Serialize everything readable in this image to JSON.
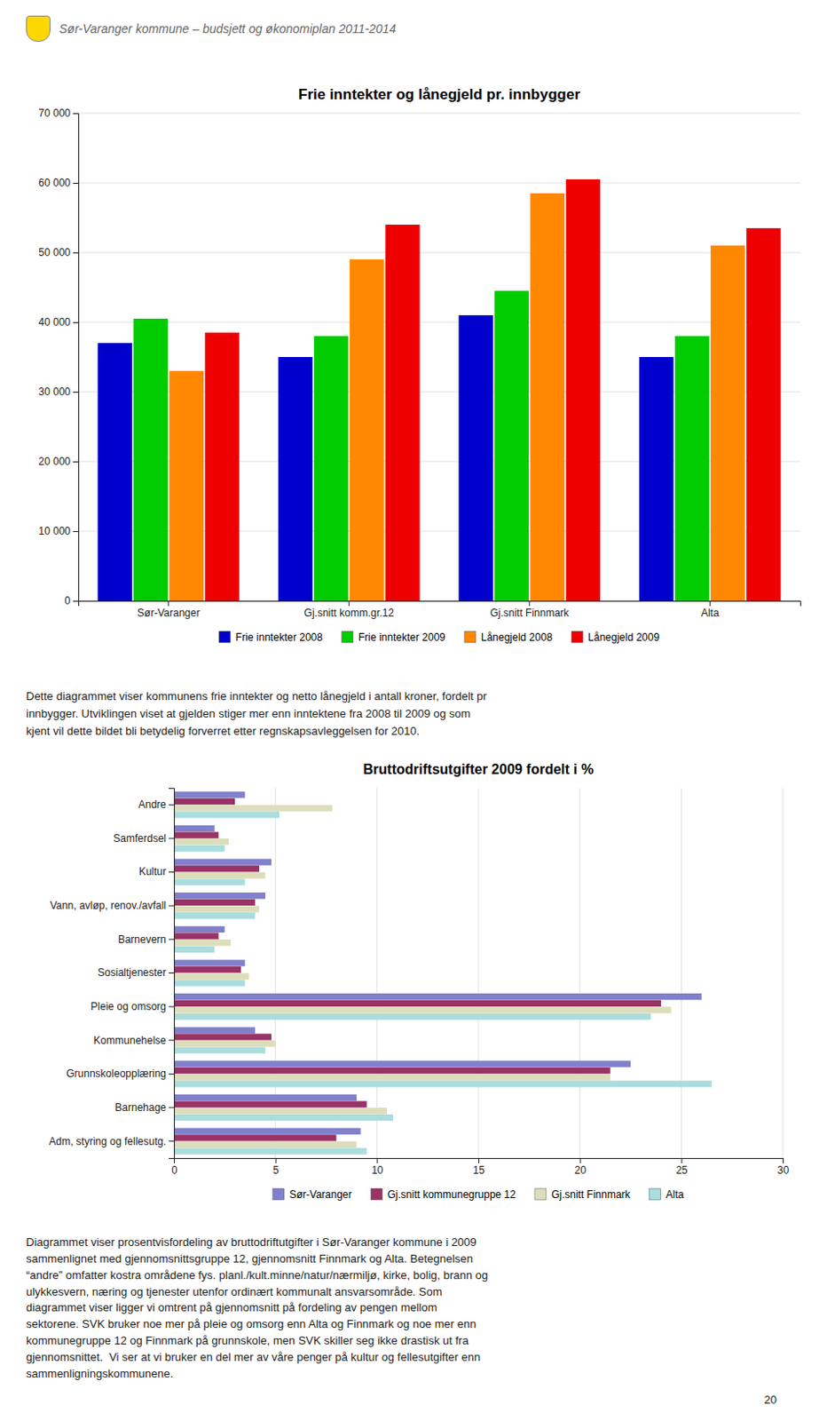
{
  "header_text": "Sør-Varanger kommune – budsjett og økonomiplan 2011-2014",
  "text1": "Dette diagrammet viser kommunens frie inntekter og netto lånegjeld i antall kroner, fordelt pr\ninnbygger. Utviklingen viset at gjelden stiger mer enn inntektene fra 2008 til 2009 og som\nkjent vil dette bildet bli betydelig forverret etter regnskapsavleggelsen for 2010.",
  "text2": "Diagrammet viser prosentvisfordeling av bruttodriftutgifter i Sør-Varanger kommune i 2009\nsammenlignet med gjennomsnittsgruppe 12, gjennomsnitt Finnmark og Alta. Betegnelsen\n“andre” omfatter kostra områdene fys. planl./kult.minne/natur/nærmiljø, kirke, bolig, brann og\nulykkesvern, næring og tjenester utenfor ordinært kommunalt ansvarsområde. Som\ndiagrammet viser ligger vi omtrent på gjennomsnitt på fordeling av pengen mellom\nsektorene. SVK bruker noe mer på pleie og omsorg enn Alta og Finnmark og noe mer enn\nkommunegruppe 12 og Finnmark på grunnskole, men SVK skiller seg ikke drastisk ut fra\ngjennomsnittet.  Vi ser at vi bruker en del mer av våre penger på kultur og fellesutgifter enn\nsammenligningskommunene.",
  "page_number": "20",
  "chart_data": [
    {
      "type": "bar",
      "title": "Frie inntekter og lånegjeld pr. innbygger",
      "categories": [
        "Sør-Varanger",
        "Gj.snitt komm.gr.12",
        "Gj.snitt Finnmark",
        "Alta"
      ],
      "series": [
        {
          "name": "Frie inntekter 2008",
          "color": "#0000CC",
          "values": [
            37000,
            35000,
            41000,
            35000
          ]
        },
        {
          "name": "Frie inntekter 2009",
          "color": "#00CC00",
          "values": [
            40500,
            38000,
            44500,
            38000
          ]
        },
        {
          "name": "Lånegjeld 2008",
          "color": "#FF8800",
          "values": [
            33000,
            49000,
            58500,
            51000
          ]
        },
        {
          "name": "Lånegjeld 2009",
          "color": "#EE0000",
          "values": [
            38500,
            54000,
            60500,
            53500
          ]
        }
      ],
      "ylim": [
        0,
        70000
      ],
      "yticks": [
        0,
        {
          "value": 10000,
          "label": "10 000"
        },
        {
          "value": 20000,
          "label": "20 000"
        },
        {
          "value": 30000,
          "label": "30 000"
        },
        {
          "value": 40000,
          "label": "40 000"
        },
        {
          "value": 50000,
          "label": "50 000"
        },
        {
          "value": 60000,
          "label": "60 000"
        },
        {
          "value": 70000,
          "label": "70 000"
        }
      ],
      "grid": true,
      "legend": "bottom"
    },
    {
      "type": "bar",
      "orientation": "horizontal",
      "title": "Bruttodriftsutgifter 2009 fordelt i %",
      "categories": [
        "Andre",
        "Samferdsel",
        "Kultur",
        "Vann, avløp, renov./avfall",
        "Barnevern",
        "Sosialtjenester",
        "Pleie og omsorg",
        "Kommunehelse",
        "Grunnskoleopplæring",
        "Barnehage",
        "Adm, styring og fellesutg."
      ],
      "series": [
        {
          "name": "Sør-Varanger",
          "color": "#8080CC",
          "values": [
            3.5,
            2.0,
            4.8,
            4.5,
            2.5,
            3.5,
            26.0,
            4.0,
            22.5,
            9.0,
            9.2
          ]
        },
        {
          "name": "Gj.snitt kommunegruppe 12",
          "color": "#993366",
          "values": [
            3.0,
            2.2,
            4.2,
            4.0,
            2.2,
            3.3,
            24.0,
            4.8,
            21.5,
            9.5,
            8.0
          ]
        },
        {
          "name": "Gj.snitt Finnmark",
          "color": "#DDDDBB",
          "values": [
            7.8,
            2.7,
            4.5,
            4.2,
            2.8,
            3.7,
            24.5,
            5.0,
            21.5,
            10.5,
            9.0
          ]
        },
        {
          "name": "Alta",
          "color": "#AADDDD",
          "values": [
            5.2,
            2.5,
            3.5,
            4.0,
            2.0,
            3.5,
            23.5,
            4.5,
            26.5,
            10.8,
            9.5
          ]
        }
      ],
      "xlim": [
        0,
        30
      ],
      "xticks": [
        0,
        5,
        10,
        15,
        20,
        25,
        30
      ],
      "grid": true,
      "legend": "bottom"
    }
  ]
}
